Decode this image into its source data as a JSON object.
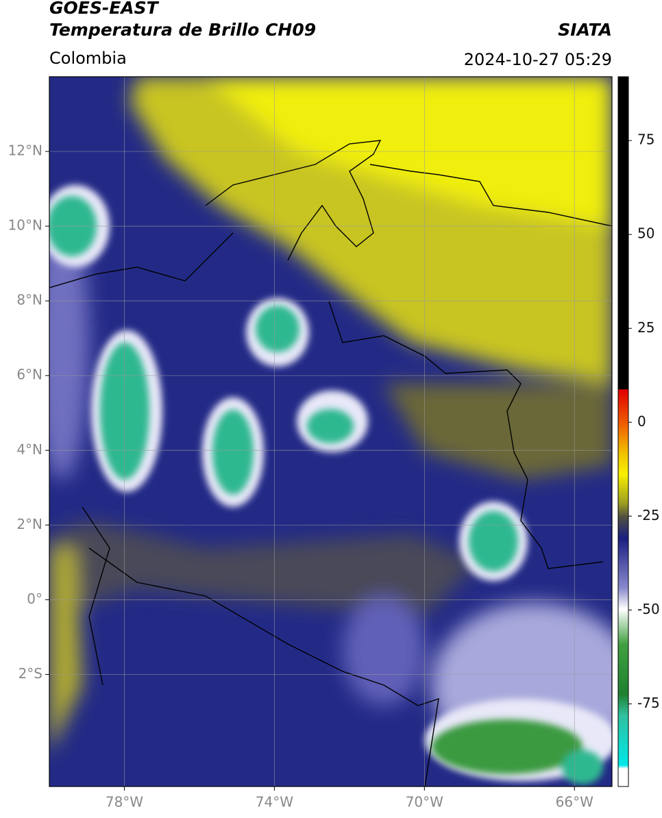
{
  "header": {
    "title": "GOES-EAST",
    "subtitle": "Temperatura de Brillo CH09",
    "source": "SIATA",
    "region": "Colombia",
    "timestamp": "2024-10-27 05:29"
  },
  "map": {
    "lonlim": [
      -80,
      -65
    ],
    "latlim": [
      -5,
      14
    ],
    "lon_ticks": [
      {
        "value": -78,
        "label": "78°W"
      },
      {
        "value": -74,
        "label": "74°W"
      },
      {
        "value": -70,
        "label": "70°W"
      },
      {
        "value": -66,
        "label": "66°W"
      }
    ],
    "lat_ticks": [
      {
        "value": 12,
        "label": "12°N"
      },
      {
        "value": 10,
        "label": "10°N"
      },
      {
        "value": 8,
        "label": "8°N"
      },
      {
        "value": 6,
        "label": "6°N"
      },
      {
        "value": 4,
        "label": "4°N"
      },
      {
        "value": 2,
        "label": "2°N"
      },
      {
        "value": 0,
        "label": "0°"
      },
      {
        "value": -2,
        "label": "2°S"
      }
    ]
  },
  "colorbar": {
    "lim": [
      -97,
      92
    ],
    "ticks": [
      75,
      50,
      25,
      0,
      -25,
      -50,
      -75
    ]
  }
}
